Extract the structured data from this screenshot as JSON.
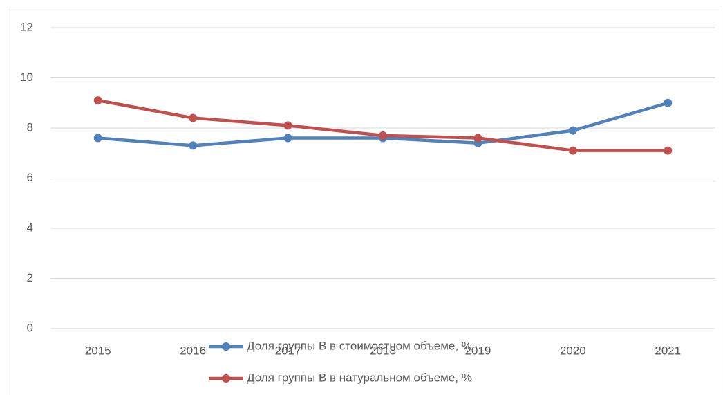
{
  "chart_data": {
    "type": "line",
    "categories": [
      "2015",
      "2016",
      "2017",
      "2018",
      "2019",
      "2020",
      "2021"
    ],
    "series": [
      {
        "name": "Доля группы В в стоимостном объеме, %",
        "color": "#4f81bd",
        "values": [
          7.6,
          7.3,
          7.6,
          7.6,
          7.4,
          7.9,
          9.0
        ]
      },
      {
        "name": "Доля группы В в натуральном объеме, %",
        "color": "#c0504d",
        "values": [
          9.1,
          8.4,
          8.1,
          7.7,
          7.6,
          7.1,
          7.1
        ]
      }
    ],
    "ylim": [
      0,
      12
    ],
    "yticks": [
      0,
      2,
      4,
      6,
      8,
      10,
      12
    ],
    "grid": true,
    "legend": "bottom"
  }
}
